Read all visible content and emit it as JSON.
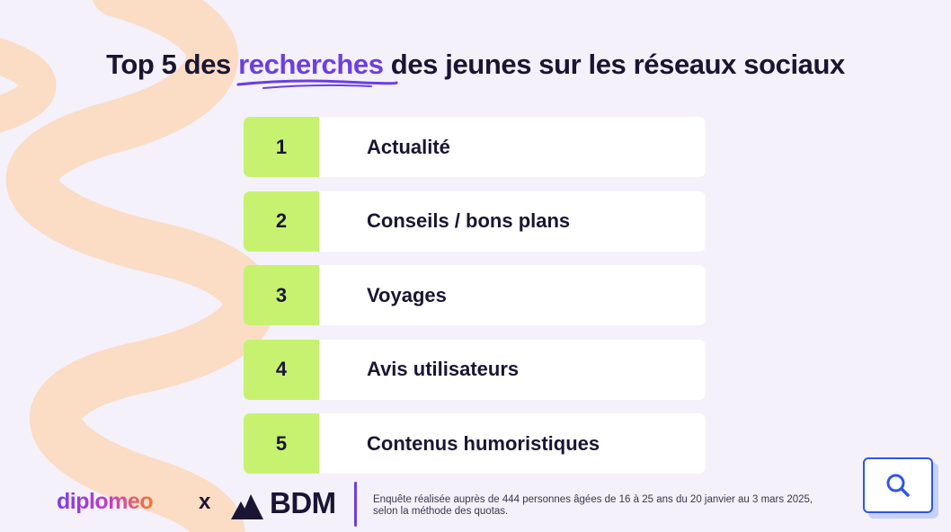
{
  "title": {
    "before": "Top 5 des",
    "highlight": "recherches",
    "after": "des jeunes sur les réseaux sociaux"
  },
  "ranking": [
    {
      "rank": "1",
      "label": "Actualité"
    },
    {
      "rank": "2",
      "label": "Conseils / bons plans"
    },
    {
      "rank": "3",
      "label": "Voyages"
    },
    {
      "rank": "4",
      "label": "Avis utilisateurs"
    },
    {
      "rank": "5",
      "label": "Contenus humoristiques"
    }
  ],
  "footer": {
    "brand1": "diplomeo",
    "separator": "x",
    "brand2": "BDM",
    "note_line1": "Enquête réalisée auprès de 444 personnes âgées de 16 à 25 ans du 20 janvier au 3 mars 2025,",
    "note_line2": "selon la méthode des quotas."
  },
  "colors": {
    "background": "#f4f1fb",
    "swirl": "#fbdcc4",
    "accent_purple": "#6b3fe0",
    "rank_green": "#c6f26f",
    "search_blue": "#2f56e6"
  },
  "icons": {
    "search_button": "search-icon"
  }
}
